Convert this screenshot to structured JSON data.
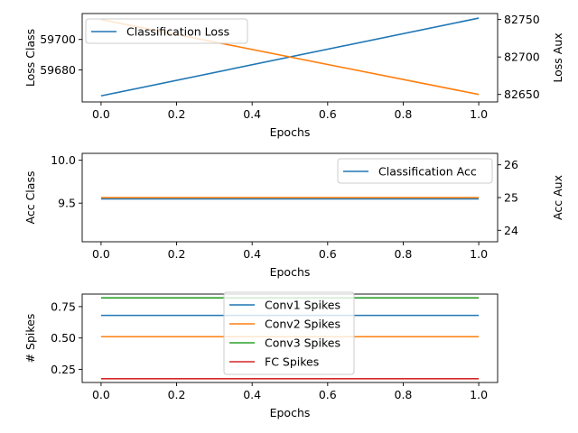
{
  "chart_data": [
    {
      "type": "line",
      "xlabel": "Epochs",
      "ylabel": "Loss Class",
      "ylabel_right": "Loss Aux",
      "xlim": [
        -0.05,
        1.05
      ],
      "ylim": [
        59659,
        59717
      ],
      "ylim_right": [
        82640,
        82758
      ],
      "xticks": [
        "0.0",
        "0.2",
        "0.4",
        "0.6",
        "0.8",
        "1.0"
      ],
      "yticks": [
        "59680",
        "59700"
      ],
      "yticks_right": [
        "82650",
        "82700",
        "82750"
      ],
      "legend": {
        "position": "upper-left",
        "entries": [
          "Classification Loss"
        ]
      },
      "series": [
        {
          "name": "Classification Loss",
          "axis": "left",
          "color": "#1f77b4",
          "x": [
            0,
            1
          ],
          "y": [
            59663,
            59714
          ]
        },
        {
          "axis": "right",
          "color": "#ff7f0e",
          "x": [
            0,
            1
          ],
          "y": [
            82750,
            82650
          ]
        }
      ]
    },
    {
      "type": "line",
      "xlabel": "Epochs",
      "ylabel": "Acc Class",
      "ylabel_right": "Acc Aux",
      "xlim": [
        -0.05,
        1.05
      ],
      "ylim": [
        9.05,
        10.08
      ],
      "ylim_right": [
        23.65,
        26.35
      ],
      "xticks": [
        "0.0",
        "0.2",
        "0.4",
        "0.6",
        "0.8",
        "1.0"
      ],
      "yticks": [
        "9.5",
        "10.0"
      ],
      "yticks_right": [
        "24",
        "25",
        "26"
      ],
      "legend": {
        "position": "upper-right",
        "entries": [
          "Classification Acc"
        ]
      },
      "series": [
        {
          "name": "Classification Acc",
          "axis": "left",
          "color": "#1f77b4",
          "x": [
            0,
            1
          ],
          "y": [
            9.55,
            9.55
          ]
        },
        {
          "axis": "right",
          "color": "#ff7f0e",
          "x": [
            0,
            1
          ],
          "y": [
            25.0,
            25.0
          ]
        }
      ]
    },
    {
      "type": "line",
      "xlabel": "Epochs",
      "ylabel": "# Spikes",
      "xlim": [
        -0.05,
        1.05
      ],
      "ylim": [
        0.145,
        0.85
      ],
      "xticks": [
        "0.0",
        "0.2",
        "0.4",
        "0.6",
        "0.8",
        "1.0"
      ],
      "yticks": [
        "0.25",
        "0.50",
        "0.75"
      ],
      "legend": {
        "position": "upper-center",
        "entries": [
          "Conv1 Spikes",
          "Conv2 Spikes",
          "Conv3 Spikes",
          "FC Spikes"
        ]
      },
      "series": [
        {
          "name": "Conv1 Spikes",
          "color": "#1f77b4",
          "x": [
            0,
            1
          ],
          "y": [
            0.68,
            0.68
          ]
        },
        {
          "name": "Conv2 Spikes",
          "color": "#ff7f0e",
          "x": [
            0,
            1
          ],
          "y": [
            0.51,
            0.51
          ]
        },
        {
          "name": "Conv3 Spikes",
          "color": "#2ca02c",
          "x": [
            0,
            1
          ],
          "y": [
            0.82,
            0.82
          ]
        },
        {
          "name": "FC Spikes",
          "color": "#d62728",
          "x": [
            0,
            1
          ],
          "y": [
            0.175,
            0.175
          ]
        }
      ]
    }
  ]
}
